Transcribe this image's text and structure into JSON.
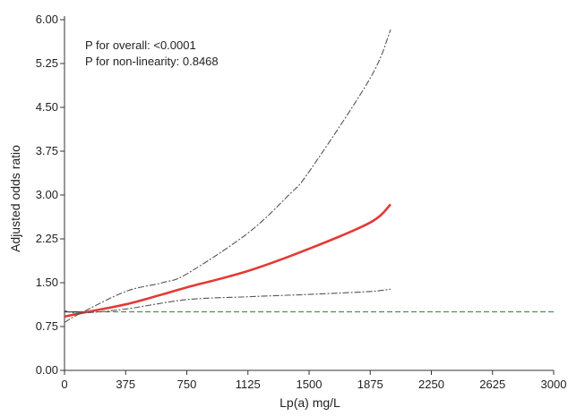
{
  "chart_data": {
    "type": "line",
    "xlabel": "Lp(a) mg/L",
    "ylabel": "Adjusted odds ratio",
    "xlim": [
      0,
      3000
    ],
    "ylim": [
      0,
      6
    ],
    "xticks": [
      0,
      375,
      750,
      1125,
      1500,
      1875,
      2250,
      2625,
      3000
    ],
    "yticks": [
      "0.00",
      "0.75",
      "1.50",
      "2.25",
      "3.00",
      "3.75",
      "4.50",
      "5.25",
      "6.00"
    ],
    "annotations": [
      "P for overall: <0.0001",
      "P for non-linearity: 0.8468"
    ],
    "reference_line": {
      "y": 1.0,
      "color": "#2e7d32"
    },
    "grid": false,
    "series": [
      {
        "style": "estimate",
        "color": "#e53935",
        "x": [
          0,
          100,
          375,
          600,
          750,
          1125,
          1500,
          1875,
          2000
        ],
        "y": [
          0.92,
          0.98,
          1.13,
          1.3,
          1.42,
          1.7,
          2.08,
          2.53,
          2.84
        ]
      },
      {
        "style": "upper-ci",
        "color": "#555555",
        "x": [
          0,
          100,
          375,
          600,
          750,
          1125,
          1375,
          1500,
          1875,
          2000
        ],
        "y": [
          0.82,
          0.98,
          1.35,
          1.5,
          1.65,
          2.35,
          3.0,
          3.4,
          5.0,
          5.83
        ]
      },
      {
        "style": "lower-ci",
        "color": "#555555",
        "x": [
          0,
          100,
          375,
          750,
          1125,
          1500,
          1875,
          2000
        ],
        "y": [
          1.02,
          0.98,
          1.05,
          1.21,
          1.26,
          1.3,
          1.35,
          1.39
        ]
      }
    ]
  }
}
